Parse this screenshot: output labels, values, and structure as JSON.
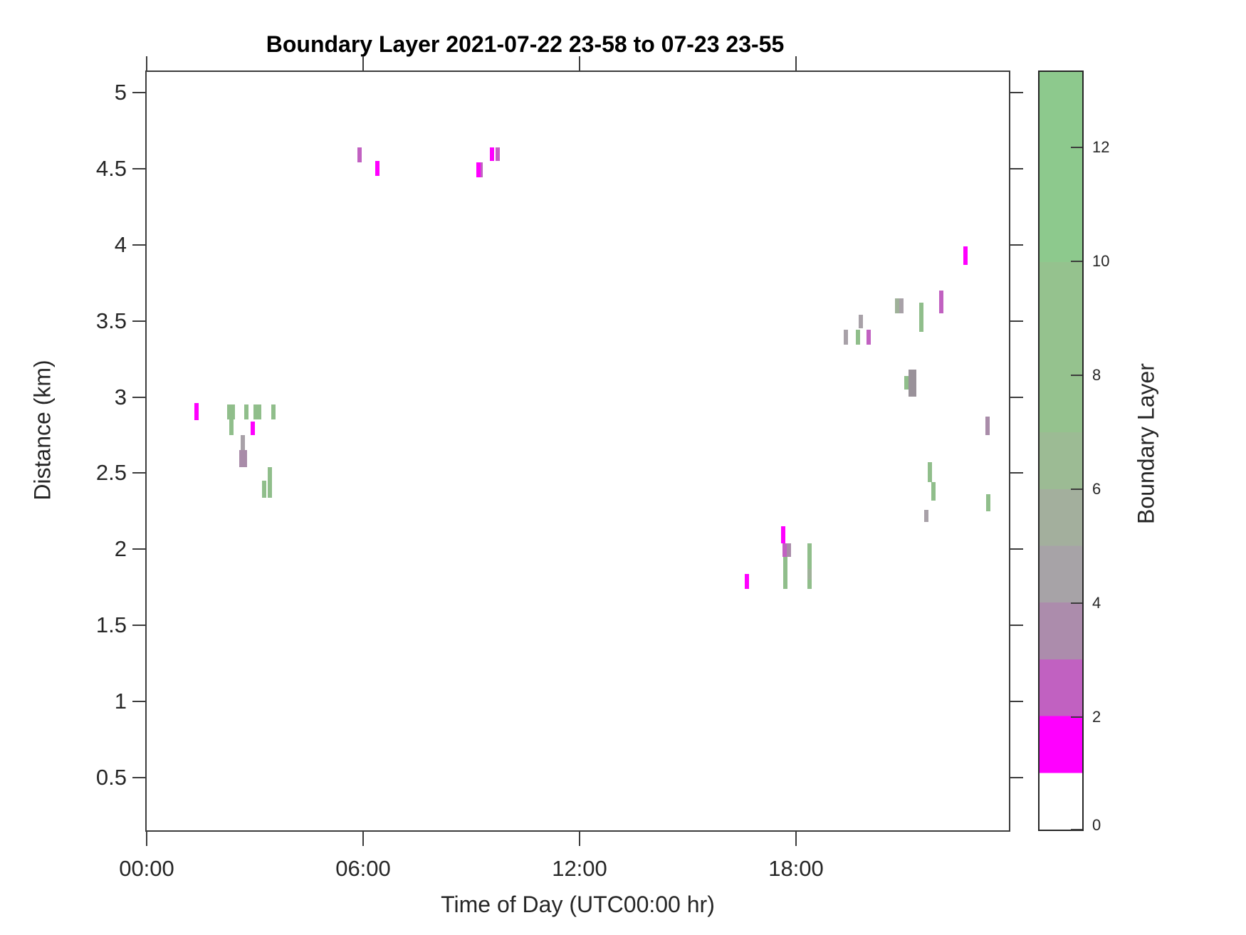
{
  "title": "Boundary Layer 2021-07-22 23-58 to 07-23 23-55",
  "xlabel": "Time of Day (UTC00:00 hr)",
  "ylabel": "Distance (km)",
  "colorbar": {
    "label": "Boundary Layer",
    "vmin": 0,
    "vmax": 13.35,
    "ticks": [
      0,
      2,
      4,
      6,
      8,
      10,
      12
    ],
    "segments": [
      {
        "from": 0,
        "to": 1,
        "color": "#FFFFFF"
      },
      {
        "from": 1,
        "to": 2,
        "color": "#FF00FF"
      },
      {
        "from": 2,
        "to": 3,
        "color": "#C161C1"
      },
      {
        "from": 3,
        "to": 4,
        "color": "#AC8CAC"
      },
      {
        "from": 4,
        "to": 5,
        "color": "#A7A3A7"
      },
      {
        "from": 5,
        "to": 6,
        "color": "#A3AF9D"
      },
      {
        "from": 6,
        "to": 7,
        "color": "#9CBB94"
      },
      {
        "from": 7,
        "to": 10,
        "color": "#95C28E"
      },
      {
        "from": 10,
        "to": 13.35,
        "color": "#8DC98D"
      }
    ]
  },
  "axes": {
    "x": {
      "tick_labels": [
        "00:00",
        "06:00",
        "12:00",
        "18:00"
      ],
      "tick_hours": [
        0,
        6,
        12,
        18
      ],
      "range_hours": [
        -0.03,
        23.92
      ]
    },
    "y": {
      "tick_labels": [
        "0.5",
        "1",
        "1.5",
        "2",
        "2.5",
        "3",
        "3.5",
        "4",
        "4.5",
        "5"
      ],
      "tick_values": [
        0.5,
        1,
        1.5,
        2,
        2.5,
        3,
        3.5,
        4,
        4.5,
        5
      ],
      "range_km": [
        0.145,
        5.145
      ]
    }
  },
  "chart_data": {
    "type": "heatmap",
    "title": "Boundary Layer 2021-07-22 23-58 to 07-23 23-55",
    "xlabel": "Time of Day (UTC00:00 hr)",
    "ylabel": "Distance (km)",
    "xlim_hours": [
      -0.03,
      23.92
    ],
    "ylim_km": [
      0.145,
      5.145
    ],
    "grid": false,
    "legend_position": "right-colorbar",
    "colorbar_title": "Boundary Layer",
    "color_classes": {
      "magenta": {
        "hex": "#FF00FF",
        "boundary_layer_value": 1.5
      },
      "orchid": {
        "hex": "#C161C1",
        "boundary_layer_value": 2.5
      },
      "grayPurple": {
        "hex": "#A98CA9",
        "boundary_layer_value": 3.5
      },
      "gray": {
        "hex": "#A8A1A8",
        "boundary_layer_value": 4.5
      },
      "grayDark": {
        "hex": "#9A929A",
        "boundary_layer_value": 4.5
      },
      "grayGreen": {
        "hex": "#9FB199",
        "boundary_layer_value": 5.5
      },
      "green": {
        "hex": "#90BE8B",
        "boundary_layer_value": 8
      }
    },
    "marks": [
      {
        "t": 1.39,
        "y0": 2.85,
        "y1": 2.96,
        "c": "magenta"
      },
      {
        "t": 2.28,
        "y0": 2.85,
        "y1": 2.95,
        "c": "green"
      },
      {
        "t": 2.38,
        "y0": 2.85,
        "y1": 2.95,
        "c": "green"
      },
      {
        "t": 2.35,
        "y0": 2.75,
        "y1": 2.86,
        "c": "green"
      },
      {
        "t": 2.77,
        "y0": 2.85,
        "y1": 2.95,
        "c": "green"
      },
      {
        "t": 3.01,
        "y0": 2.85,
        "y1": 2.95,
        "c": "green"
      },
      {
        "t": 3.11,
        "y0": 2.85,
        "y1": 2.95,
        "c": "green"
      },
      {
        "t": 2.95,
        "y0": 2.75,
        "y1": 2.84,
        "c": "magenta"
      },
      {
        "t": 3.52,
        "y0": 2.85,
        "y1": 2.95,
        "c": "green"
      },
      {
        "t": 2.67,
        "y0": 2.65,
        "y1": 2.75,
        "c": "gray"
      },
      {
        "t": 2.67,
        "y0": 2.54,
        "y1": 2.65,
        "c": "grayPurple",
        "w": "wide"
      },
      {
        "t": 3.42,
        "y0": 2.34,
        "y1": 2.54,
        "c": "green"
      },
      {
        "t": 3.25,
        "y0": 2.34,
        "y1": 2.45,
        "c": "green"
      },
      {
        "t": 5.9,
        "y0": 4.54,
        "y1": 4.64,
        "c": "orchid"
      },
      {
        "t": 6.4,
        "y0": 4.45,
        "y1": 4.55,
        "c": "magenta"
      },
      {
        "t": 9.19,
        "y0": 4.44,
        "y1": 4.54,
        "c": "magenta"
      },
      {
        "t": 9.29,
        "y0": 4.44,
        "y1": 4.54,
        "c": "orchid",
        "w": "thin"
      },
      {
        "t": 9.57,
        "y0": 4.55,
        "y1": 4.64,
        "c": "magenta"
      },
      {
        "t": 9.72,
        "y0": 4.55,
        "y1": 4.64,
        "c": "orchid"
      },
      {
        "t": 16.64,
        "y0": 1.74,
        "y1": 1.84,
        "c": "magenta"
      },
      {
        "t": 17.65,
        "y0": 2.04,
        "y1": 2.15,
        "c": "magenta"
      },
      {
        "t": 17.69,
        "y0": 1.95,
        "y1": 2.04,
        "c": "orchid"
      },
      {
        "t": 17.8,
        "y0": 1.95,
        "y1": 2.04,
        "c": "grayPurple"
      },
      {
        "t": 17.71,
        "y0": 1.74,
        "y1": 1.95,
        "c": "green"
      },
      {
        "t": 18.38,
        "y0": 1.74,
        "y1": 2.04,
        "c": "green"
      },
      {
        "t": 18.38,
        "y0": 1.8,
        "y1": 1.87,
        "c": "grayGreen"
      },
      {
        "t": 19.38,
        "y0": 3.34,
        "y1": 3.44,
        "c": "gray"
      },
      {
        "t": 19.72,
        "y0": 3.34,
        "y1": 3.44,
        "c": "green"
      },
      {
        "t": 20.01,
        "y0": 3.34,
        "y1": 3.44,
        "c": "orchid"
      },
      {
        "t": 19.8,
        "y0": 3.45,
        "y1": 3.54,
        "c": "gray"
      },
      {
        "t": 20.81,
        "y0": 3.55,
        "y1": 3.65,
        "c": "grayGreen"
      },
      {
        "t": 20.91,
        "y0": 3.55,
        "y1": 3.65,
        "c": "gray"
      },
      {
        "t": 21.05,
        "y0": 3.05,
        "y1": 3.14,
        "c": "green"
      },
      {
        "t": 21.22,
        "y0": 3.0,
        "y1": 3.18,
        "c": "grayDark",
        "w": "wide"
      },
      {
        "t": 21.48,
        "y0": 3.43,
        "y1": 3.62,
        "c": "green"
      },
      {
        "t": 21.7,
        "y0": 2.44,
        "y1": 2.57,
        "c": "green"
      },
      {
        "t": 21.8,
        "y0": 2.32,
        "y1": 2.44,
        "c": "green"
      },
      {
        "t": 21.62,
        "y0": 2.18,
        "y1": 2.26,
        "c": "gray"
      },
      {
        "t": 22.02,
        "y0": 3.55,
        "y1": 3.7,
        "c": "orchid"
      },
      {
        "t": 22.7,
        "y0": 3.87,
        "y1": 3.99,
        "c": "magenta"
      },
      {
        "t": 23.3,
        "y0": 2.75,
        "y1": 2.87,
        "c": "grayPurple"
      },
      {
        "t": 23.33,
        "y0": 2.25,
        "y1": 2.36,
        "c": "green"
      }
    ]
  }
}
